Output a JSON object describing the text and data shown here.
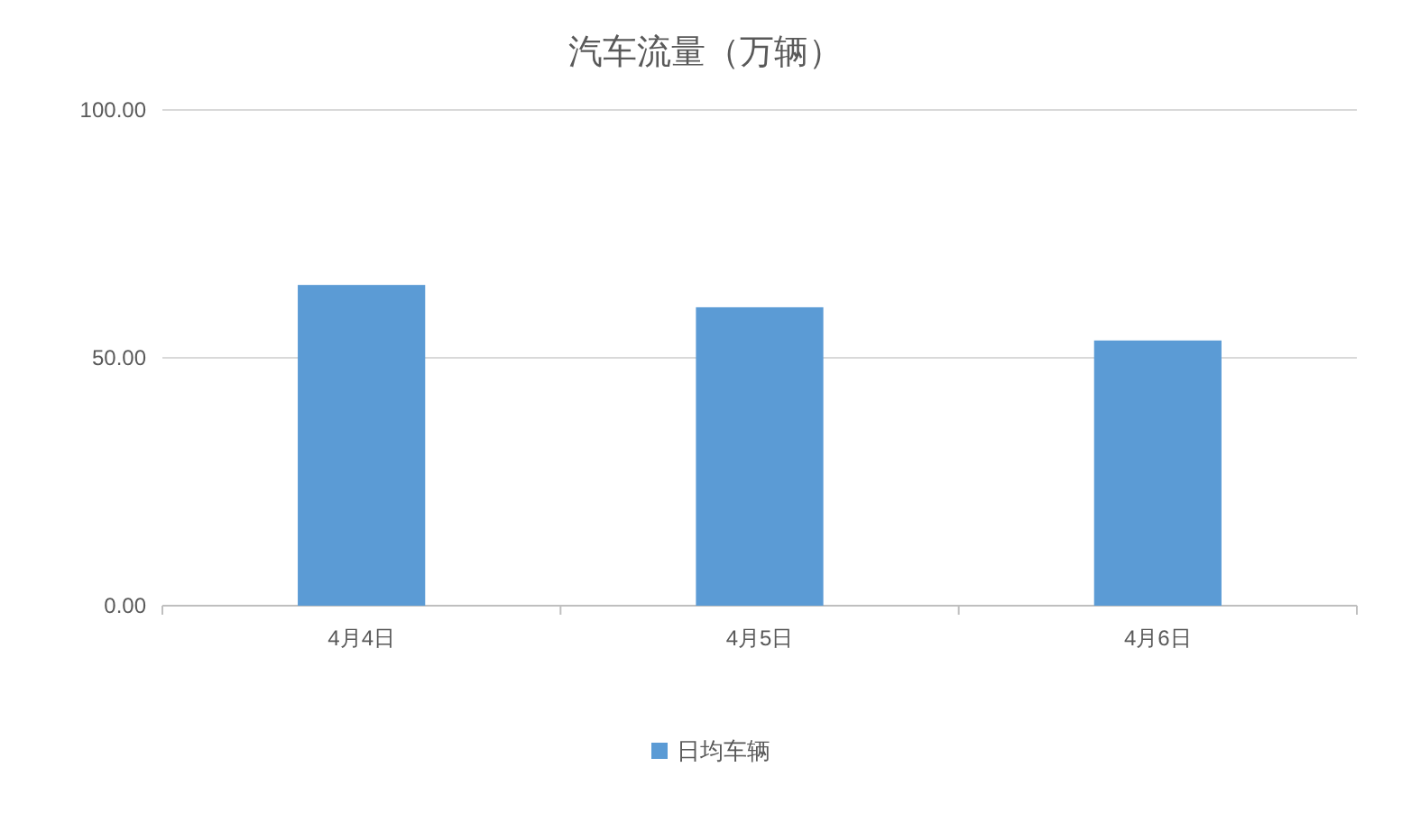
{
  "chart_data": {
    "type": "bar",
    "title": "汽车流量（万辆）",
    "categories": [
      "4月4日",
      "4月5日",
      "4月6日"
    ],
    "series": [
      {
        "name": "日均车辆",
        "color": "#5b9bd5",
        "values": [
          64.7,
          60.2,
          53.5
        ]
      }
    ],
    "ylim": [
      0,
      100
    ],
    "yticks": [
      {
        "value": 0,
        "label": "0.00"
      },
      {
        "value": 50,
        "label": "50.00"
      },
      {
        "value": 100,
        "label": "100.00"
      }
    ],
    "grid": "y",
    "legend": "bottom"
  }
}
